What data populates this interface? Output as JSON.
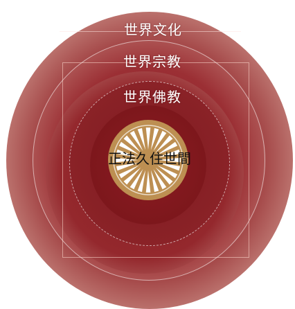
{
  "labels": {
    "world_culture": "世界文化",
    "world_religion": "世界宗教",
    "world_buddhism": "世界佛教",
    "center": "正法久住世間"
  },
  "icons": {
    "center": "dharma-wheel-icon"
  },
  "colors": {
    "outer_ring": "#a64b4b",
    "middle_ring": "#94282d",
    "inner_ring": "#7d171c",
    "wheel_gold": "#bd8f52",
    "label_text": "#ffffff",
    "center_text": "#111111"
  }
}
